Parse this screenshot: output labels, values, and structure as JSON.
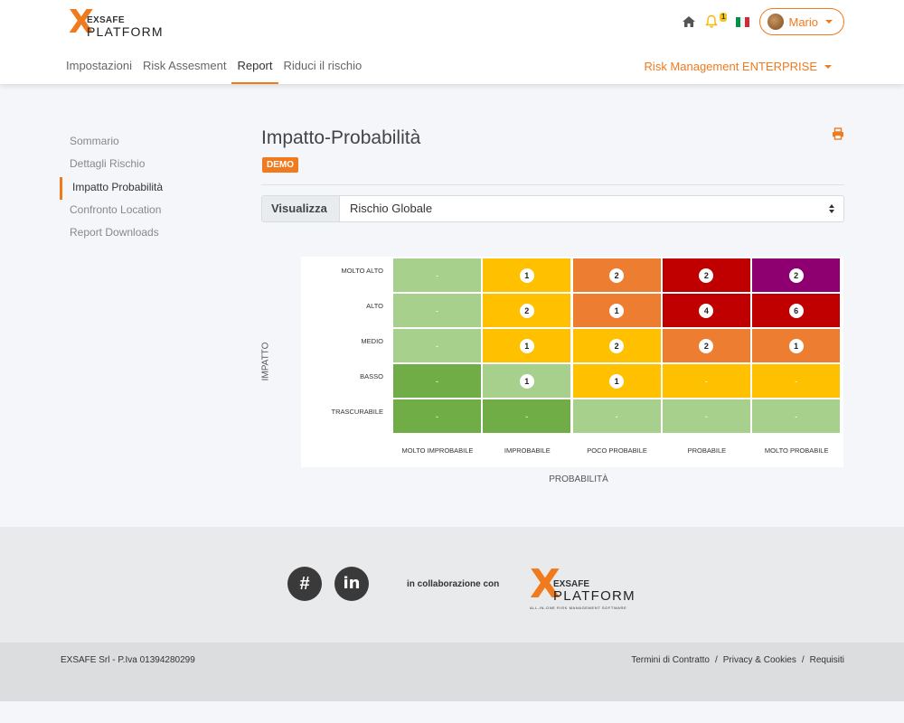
{
  "header": {
    "logo": {
      "mark": "X",
      "line1": "EXSAFE",
      "line2": "PLATFORM"
    },
    "notification_count": "1",
    "user_name": "Mario",
    "nav": [
      "Impostazioni",
      "Risk Assesment",
      "Report",
      "Riduci il rischio"
    ],
    "active_nav": "Report",
    "plan": "Risk Management ENTERPRISE"
  },
  "sidebar": {
    "items": [
      "Sommario",
      "Dettagli Rischio",
      "Impatto Probabilità",
      "Confronto Location",
      "Report Downloads"
    ],
    "active": "Impatto Probabilità"
  },
  "main": {
    "title": "Impatto-Probabilità",
    "badge": "DEMO",
    "select_label": "Visualizza",
    "select_value": "Rischio Globale"
  },
  "matrix": {
    "y_axis_label": "IMPATTO",
    "x_axis_label": "PROBABILITÀ",
    "rows": [
      "MOLTO ALTO",
      "ALTO",
      "MEDIO",
      "BASSO",
      "TRASCURABILE"
    ],
    "cols": [
      "MOLTO IMPROBABILE",
      "IMPROBABILE",
      "POCO PROBABILE",
      "PROBABILE",
      "MOLTO PROBABILE"
    ],
    "values": [
      [
        "-",
        "1",
        "2",
        "2",
        "2"
      ],
      [
        "-",
        "2",
        "1",
        "4",
        "6"
      ],
      [
        "-",
        "1",
        "2",
        "2",
        "1"
      ],
      [
        "-",
        "1",
        "1",
        "-",
        "-"
      ],
      [
        "-",
        "-",
        "-",
        "-",
        "-"
      ]
    ],
    "colors": [
      [
        "#a8d08d",
        "#ffc000",
        "#ed7d31",
        "#c00000",
        "#8e0070"
      ],
      [
        "#a8d08d",
        "#ffc000",
        "#ed7d31",
        "#c00000",
        "#c00000"
      ],
      [
        "#a8d08d",
        "#ffc000",
        "#ffc000",
        "#ed7d31",
        "#ed7d31"
      ],
      [
        "#70ad47",
        "#a8d08d",
        "#ffc000",
        "#ffc000",
        "#ffc000"
      ],
      [
        "#70ad47",
        "#70ad47",
        "#a8d08d",
        "#a8d08d",
        "#a8d08d"
      ]
    ]
  },
  "footer": {
    "collab": "in collaborazione con",
    "logo": {
      "mark": "X",
      "line1": "EXSAFE",
      "line2": "PLATFORM",
      "tagline": "ALL-IN-ONE RISK MANAGEMENT SOFTWARE"
    },
    "copyright": "EXSAFE Srl - P.Iva 01394280299",
    "links": [
      "Termini di Contratto",
      "Privacy & Cookies",
      "Requisiti"
    ],
    "link_separator": "/"
  },
  "colors": {
    "accent": "#f07a1e"
  }
}
